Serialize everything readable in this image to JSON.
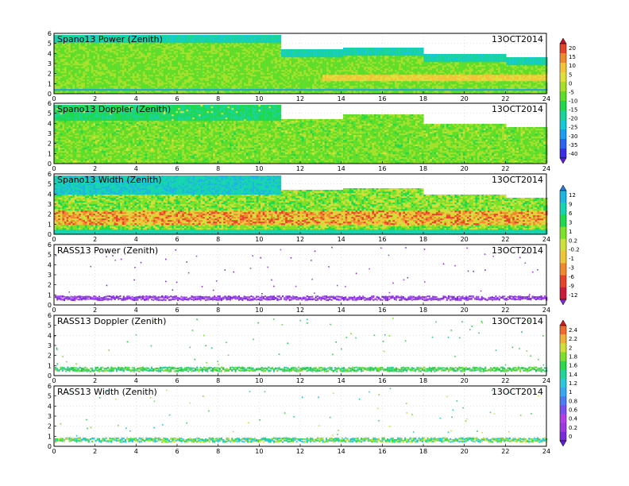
{
  "colors": {
    "power_doppler_palette": [
      "#5a1fd6",
      "#3b2fe6",
      "#2a63f0",
      "#1c9df0",
      "#16c9d6",
      "#18d49a",
      "#1fd84e",
      "#5ede2a",
      "#a6e02a",
      "#dfe03a",
      "#f0c53a",
      "#ef8a2f",
      "#e4452a",
      "#c8102a"
    ],
    "width_palette": [
      "#2a7bd9",
      "#1cb6e0",
      "#16d4b0",
      "#1fd84e",
      "#7fe02a",
      "#cfe03a",
      "#f0c53a",
      "#ef8a2f",
      "#e4452a",
      "#cc1a3a"
    ],
    "rass_palette": [
      "#5a1fd6",
      "#7a2ad8",
      "#9a3ae0",
      "#b040e6",
      "#7a4ff0",
      "#4a7cf4",
      "#3aa8f0",
      "#2ec8d8",
      "#22d49a",
      "#2ad84e",
      "#7fde2a",
      "#cfe03a",
      "#f0b03a",
      "#ef6a2f",
      "#d21a2a"
    ]
  },
  "chart_data": [
    {
      "type": "heatmap",
      "title": "Spano13 Power (Zenith)",
      "date": "13OCT2014",
      "x": [
        0,
        24
      ],
      "y": [
        0,
        6
      ],
      "xticks": [
        "0",
        "2",
        "4",
        "6",
        "8",
        "10",
        "12",
        "14",
        "16",
        "18",
        "20",
        "22",
        "24"
      ],
      "yticks": [
        "0",
        "1",
        "2",
        "3",
        "4",
        "5",
        "6"
      ],
      "colorbar": "power_doppler",
      "top_height_profile": [
        [
          0,
          5.9
        ],
        [
          11,
          5.9
        ],
        [
          11,
          4.5
        ],
        [
          14,
          4.5
        ],
        [
          14,
          4.6
        ],
        [
          18,
          4.6
        ],
        [
          18,
          4.0
        ],
        [
          22,
          4.0
        ],
        [
          22,
          3.7
        ],
        [
          24,
          3.7
        ]
      ]
    },
    {
      "type": "heatmap",
      "title": "Spano13 Doppler (Zenith)",
      "date": "13OCT2014",
      "x": [
        0,
        24
      ],
      "y": [
        0,
        6
      ],
      "xticks": [
        "0",
        "2",
        "4",
        "6",
        "8",
        "10",
        "12",
        "14",
        "16",
        "18",
        "20",
        "22",
        "24"
      ],
      "yticks": [
        "0",
        "1",
        "2",
        "3",
        "4",
        "5",
        "6"
      ],
      "colorbar": "power_doppler",
      "top_height_profile": [
        [
          0,
          5.9
        ],
        [
          11,
          5.9
        ],
        [
          11,
          4.5
        ],
        [
          14,
          4.5
        ],
        [
          14,
          5.0
        ],
        [
          18,
          5.0
        ],
        [
          18,
          4.0
        ],
        [
          22,
          4.0
        ],
        [
          22,
          3.7
        ],
        [
          24,
          3.7
        ]
      ]
    },
    {
      "type": "heatmap",
      "title": "Spano13 Width (Zenith)",
      "date": "13OCT2014",
      "x": [
        0,
        24
      ],
      "y": [
        0,
        6
      ],
      "xticks": [
        "0",
        "2",
        "4",
        "6",
        "8",
        "10",
        "12",
        "14",
        "16",
        "18",
        "20",
        "22",
        "24"
      ],
      "yticks": [
        "0",
        "1",
        "2",
        "3",
        "4",
        "5",
        "6"
      ],
      "colorbar": "width",
      "top_height_profile": [
        [
          0,
          5.9
        ],
        [
          11,
          5.9
        ],
        [
          11,
          4.5
        ],
        [
          14,
          4.5
        ],
        [
          14,
          4.6
        ],
        [
          18,
          4.6
        ],
        [
          18,
          4.0
        ],
        [
          22,
          4.0
        ],
        [
          22,
          3.7
        ],
        [
          24,
          3.7
        ]
      ]
    },
    {
      "type": "scatter",
      "title": "RASS13 Power (Zenith)",
      "date": "13OCT2014",
      "x": [
        0,
        24
      ],
      "y": [
        0,
        6
      ],
      "xticks": [
        "0",
        "2",
        "4",
        "6",
        "8",
        "10",
        "12",
        "14",
        "16",
        "18",
        "20",
        "22",
        "24"
      ],
      "yticks": [
        "0",
        "1",
        "2",
        "3",
        "4",
        "5",
        "6"
      ],
      "colorbar": "width",
      "band_height": 0.7
    },
    {
      "type": "scatter",
      "title": "RASS13 Doppler (Zenith)",
      "date": "13OCT2014",
      "x": [
        0,
        24
      ],
      "y": [
        0,
        6
      ],
      "xticks": [
        "0",
        "2",
        "4",
        "6",
        "8",
        "10",
        "12",
        "14",
        "16",
        "18",
        "20",
        "22",
        "24"
      ],
      "yticks": [
        "0",
        "1",
        "2",
        "3",
        "4",
        "5",
        "6"
      ],
      "colorbar": "rass",
      "band_height": 0.65
    },
    {
      "type": "scatter",
      "title": "RASS13 Width (Zenith)",
      "date": "13OCT2014",
      "x": [
        0,
        24
      ],
      "y": [
        0,
        6
      ],
      "xticks": [
        "0",
        "2",
        "4",
        "6",
        "8",
        "10",
        "12",
        "14",
        "16",
        "18",
        "20",
        "22",
        "24"
      ],
      "yticks": [
        "0",
        "1",
        "2",
        "3",
        "4",
        "5",
        "6"
      ],
      "colorbar": "rass",
      "band_height": 0.65
    }
  ],
  "colorbars": {
    "power_doppler": {
      "labels": [
        "20",
        "15",
        "10",
        "5",
        "0",
        "-5",
        "-10",
        "-15",
        "-20",
        "-25",
        "-30",
        "-35",
        "-40"
      ]
    },
    "width": {
      "labels": [
        "12",
        "9",
        "6",
        "3",
        "1",
        "0.2",
        "-0.2",
        "-1",
        "-3",
        "-6",
        "-9",
        "-12"
      ]
    },
    "rass": {
      "labels": [
        "2.4",
        "2.2",
        "2",
        "1.8",
        "1.6",
        "1.4",
        "1.2",
        "1",
        "0.8",
        "0.6",
        "0.4",
        "0.2",
        "0"
      ]
    }
  }
}
